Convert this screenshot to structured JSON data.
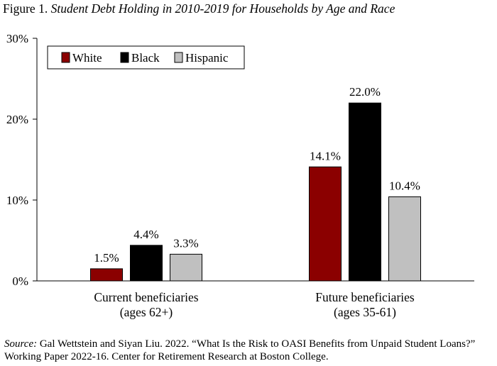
{
  "title": {
    "prefix": "Figure 1.",
    "text": "Student Debt Holding in 2010-2019 for Households by Age and Race"
  },
  "chart_data": {
    "type": "bar",
    "categories": [
      [
        "Current beneficiaries",
        "(ages 62+)"
      ],
      [
        "Future beneficiaries",
        "(ages 35-61)"
      ]
    ],
    "series": [
      {
        "name": "White",
        "values": [
          1.5,
          14.1
        ],
        "labels": [
          "1.5%",
          "14.1%"
        ],
        "color": "#8b0000"
      },
      {
        "name": "Black",
        "values": [
          4.4,
          22.0
        ],
        "labels": [
          "4.4%",
          "22.0%"
        ],
        "color": "#000000"
      },
      {
        "name": "Hispanic",
        "values": [
          3.3,
          10.4
        ],
        "labels": [
          "3.3%",
          "10.4%"
        ],
        "color": "#c0c0c0"
      }
    ],
    "ylim": [
      0,
      30
    ],
    "yticks": [
      0,
      10,
      20,
      30
    ],
    "ytick_labels": [
      "0%",
      "10%",
      "20%",
      "30%"
    ],
    "grid": false,
    "legend": "top-left"
  },
  "source": {
    "label": "Source:",
    "text": "Gal Wettstein and Siyan Liu. 2022. “What Is the Risk to OASI Benefits from Unpaid Student Loans?” Working Paper 2022-16. Center for Retirement Research at Boston College."
  }
}
